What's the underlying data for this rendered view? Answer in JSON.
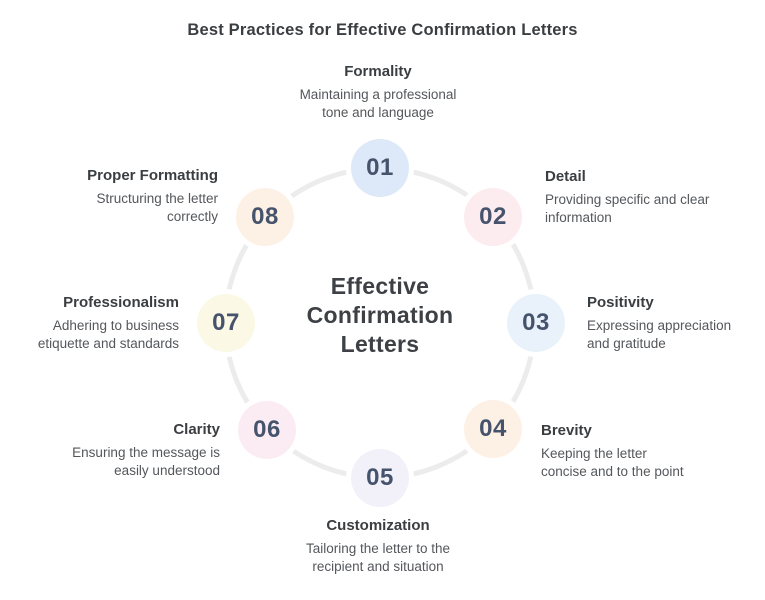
{
  "title": "Best Practices for Effective Confirmation Letters",
  "center_label": "Effective\nConfirmation\nLetters",
  "ring_color": "#ececec",
  "text_colors": {
    "heading": "#3b3e41",
    "body": "#54575b",
    "number": "#46536c"
  },
  "nodes": [
    {
      "number": "01",
      "label": "Formality",
      "description": "Maintaining a professional\ntone and language",
      "color": "#dde9f8"
    },
    {
      "number": "02",
      "label": "Detail",
      "description": "Providing specific and clear\ninformation",
      "color": "#fcecef"
    },
    {
      "number": "03",
      "label": "Positivity",
      "description": "Expressing appreciation\nand gratitude",
      "color": "#e9f2fb"
    },
    {
      "number": "04",
      "label": "Brevity",
      "description": "Keeping the letter\nconcise and to the point",
      "color": "#fdf1e5"
    },
    {
      "number": "05",
      "label": "Customization",
      "description": "Tailoring the letter to the\nrecipient and situation",
      "color": "#f2f1fa"
    },
    {
      "number": "06",
      "label": "Clarity",
      "description": "Ensuring the message is\neasily understood",
      "color": "#faecf2"
    },
    {
      "number": "07",
      "label": "Professionalism",
      "description": "Adhering to business\netiquette and standards",
      "color": "#fbf8e5"
    },
    {
      "number": "08",
      "label": "Proper Formatting",
      "description": "Structuring the letter\ncorrectly",
      "color": "#fdf1e6"
    }
  ]
}
